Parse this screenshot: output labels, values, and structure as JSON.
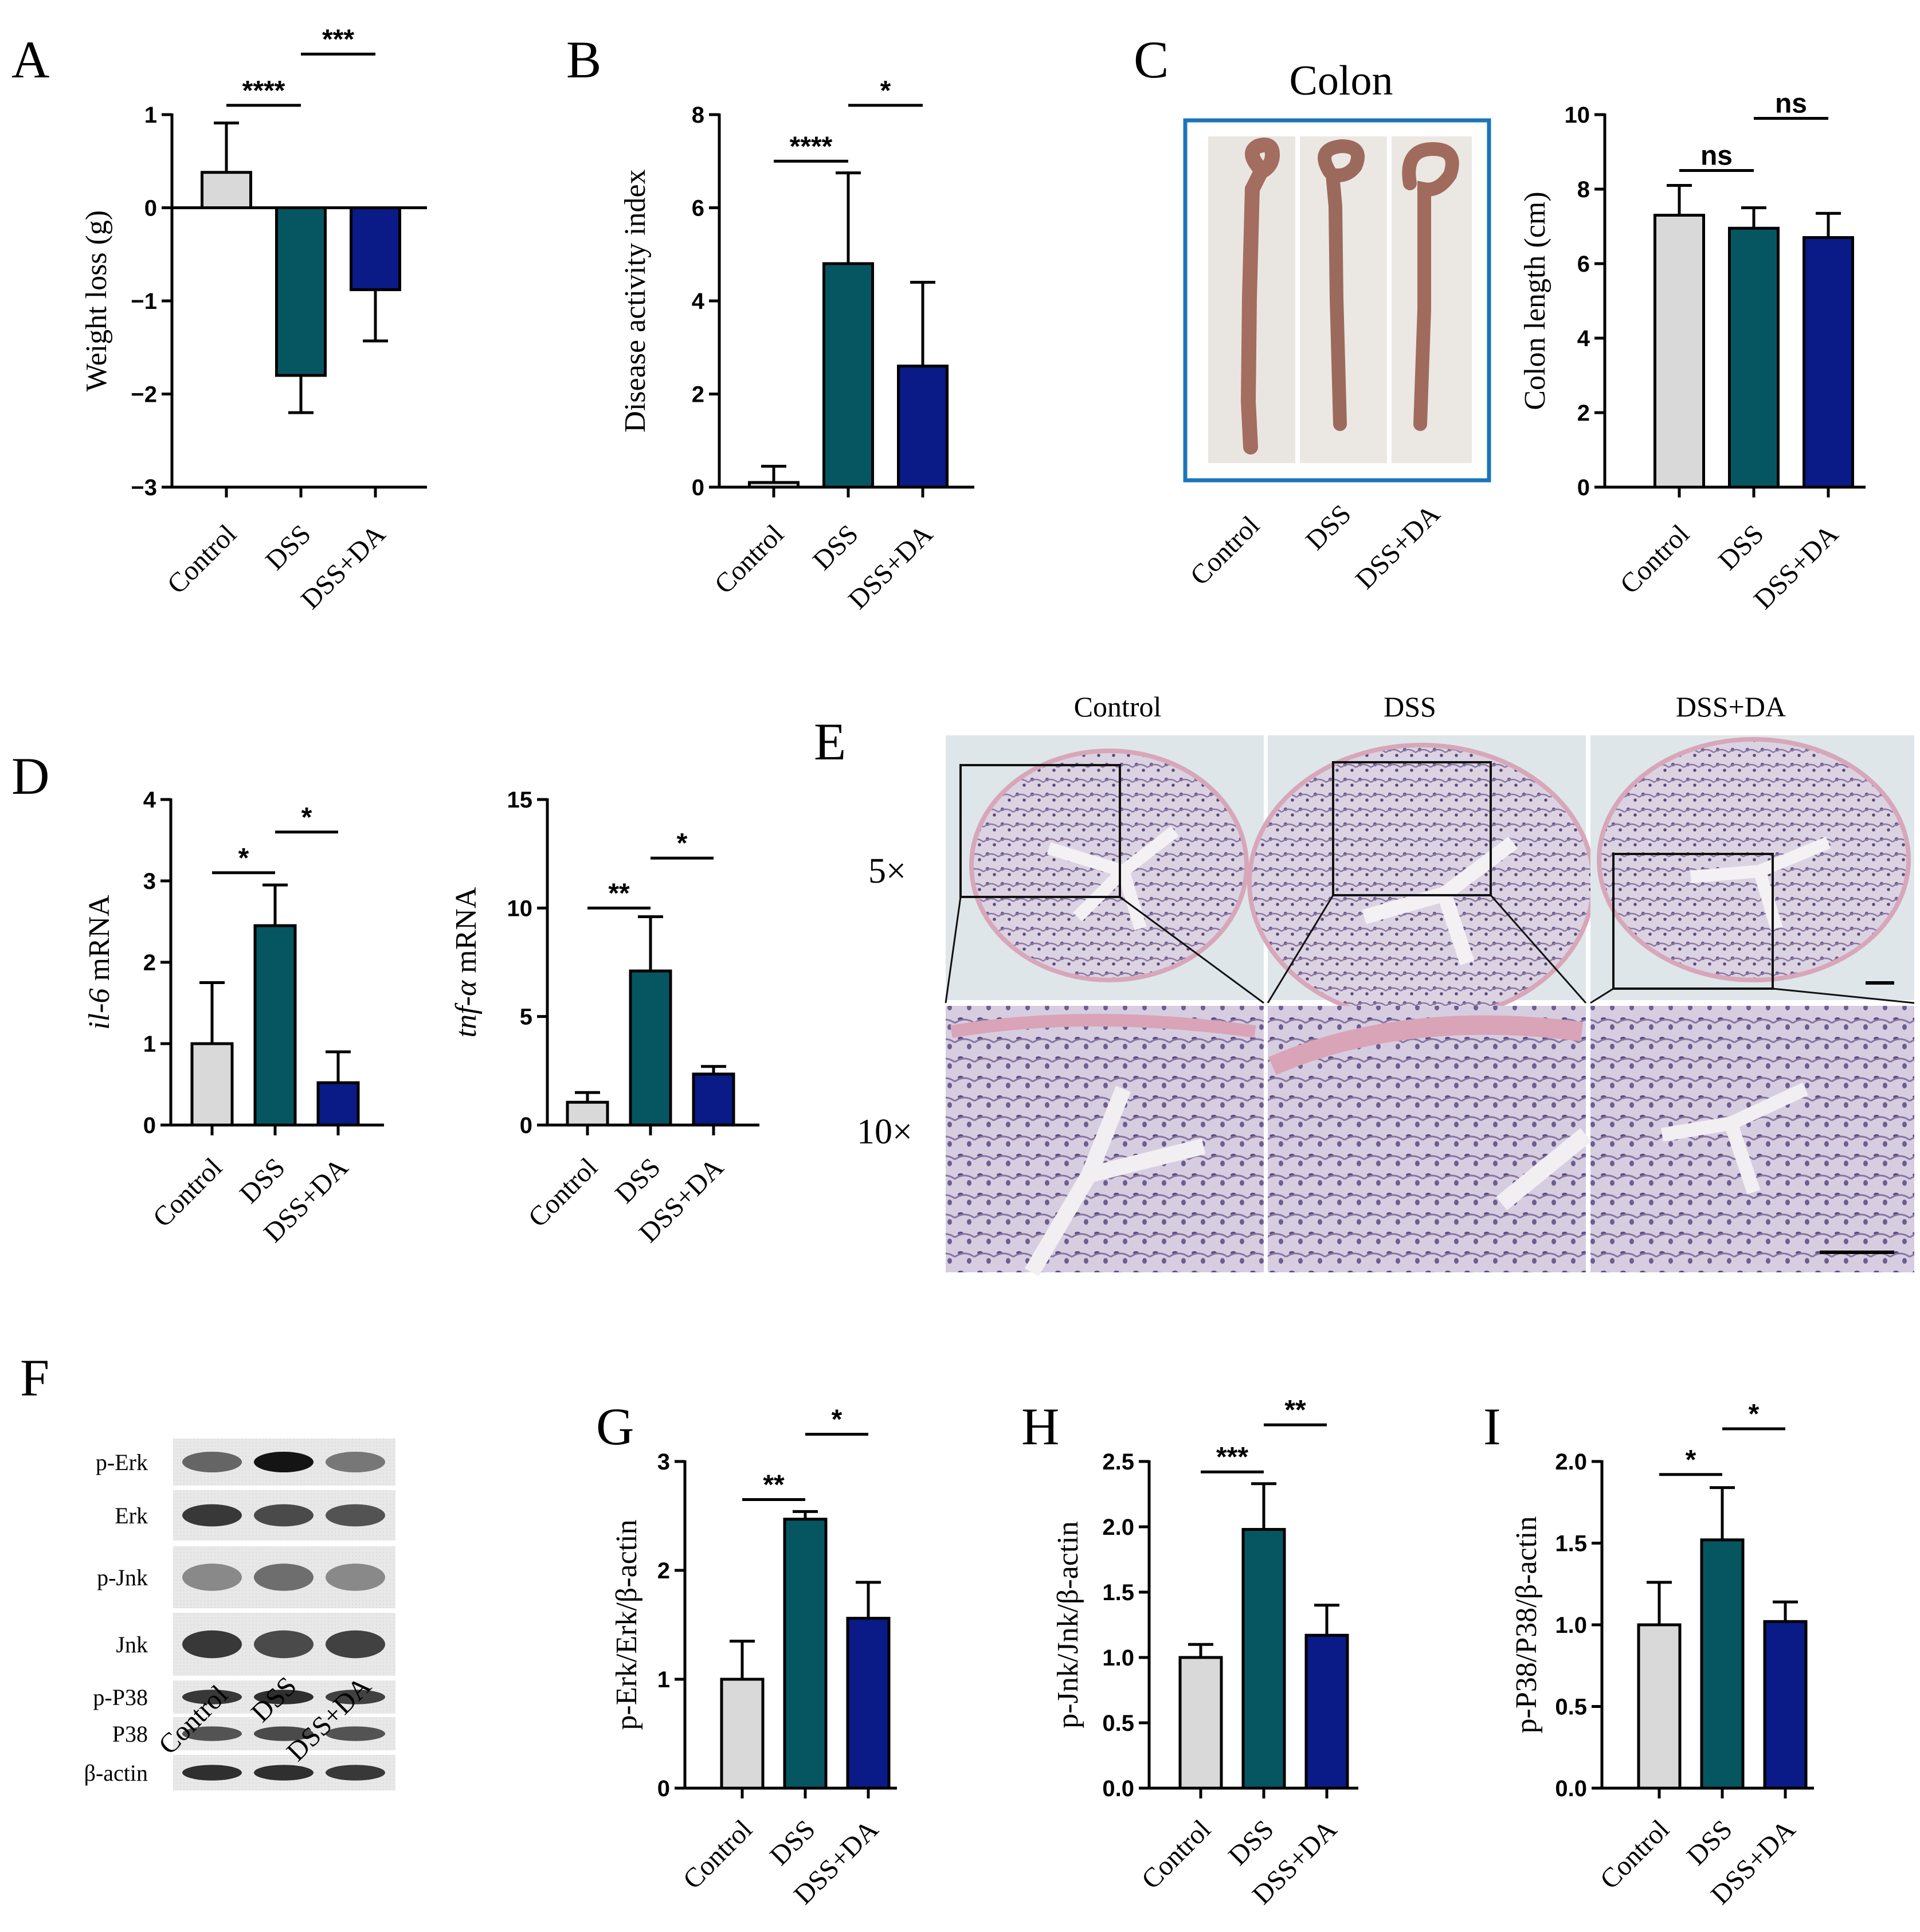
{
  "figure": {
    "panels": [
      "A",
      "B",
      "C",
      "D",
      "E",
      "F",
      "G",
      "H",
      "I"
    ],
    "groups": [
      "Control",
      "DSS",
      "DSS+DA"
    ],
    "group_colors": [
      "#d9d9d9",
      "#065662",
      "#0a1a86"
    ],
    "colon_photo_title": "Colon",
    "histology": {
      "column_labels": [
        "Control",
        "DSS",
        "DSS+DA"
      ],
      "row_labels": [
        "5×",
        "10×"
      ]
    },
    "blot_labels": [
      "p-Erk",
      "Erk",
      "p-Jnk",
      "Jnk",
      "p-P38",
      "P38",
      "β-actin"
    ]
  },
  "chart_data": [
    {
      "id": "A",
      "type": "bar",
      "categories": [
        "Control",
        "DSS",
        "DSS+DA"
      ],
      "values": [
        0.38,
        -1.8,
        -0.88
      ],
      "errors": [
        0.53,
        0.4,
        0.55
      ],
      "ylabel": "Weight loss (g)",
      "ylim": [
        -3,
        1
      ],
      "yticks": [
        1,
        0,
        -1,
        -2,
        -3
      ],
      "ytick_labels": [
        "1",
        "0",
        "−1",
        "−2",
        "−3"
      ],
      "zero_line": true,
      "significance": [
        {
          "from": 0,
          "to": 1,
          "label": "****",
          "y": 1.1
        },
        {
          "from": 1,
          "to": 2,
          "label": "***",
          "y": 1.65
        }
      ]
    },
    {
      "id": "B",
      "type": "bar",
      "categories": [
        "Control",
        "DSS",
        "DSS+DA"
      ],
      "values": [
        0.1,
        4.8,
        2.6
      ],
      "errors": [
        0.35,
        1.95,
        1.8
      ],
      "ylabel": "Disease activity index",
      "ylim": [
        0,
        8
      ],
      "yticks": [
        0,
        2,
        4,
        6,
        8
      ],
      "ytick_labels": [
        "0",
        "2",
        "4",
        "6",
        "8"
      ],
      "significance": [
        {
          "from": 0,
          "to": 1,
          "label": "****",
          "y": 7.0
        },
        {
          "from": 1,
          "to": 2,
          "label": "*",
          "y": 8.2
        }
      ]
    },
    {
      "id": "C",
      "type": "bar",
      "categories": [
        "Control",
        "DSS",
        "DSS+DA"
      ],
      "values": [
        7.3,
        6.95,
        6.7
      ],
      "errors": [
        0.8,
        0.55,
        0.65
      ],
      "ylabel": "Colon length (cm)",
      "ylim": [
        0,
        10
      ],
      "yticks": [
        0,
        2,
        4,
        6,
        8,
        10
      ],
      "ytick_labels": [
        "0",
        "2",
        "4",
        "6",
        "8",
        "10"
      ],
      "significance": [
        {
          "from": 0,
          "to": 1,
          "label": "ns",
          "y": 8.5
        },
        {
          "from": 1,
          "to": 2,
          "label": "ns",
          "y": 9.9
        }
      ]
    },
    {
      "id": "D1",
      "type": "bar",
      "categories": [
        "Control",
        "DSS",
        "DSS+DA"
      ],
      "values": [
        1.0,
        2.45,
        0.52
      ],
      "errors": [
        0.75,
        0.5,
        0.38
      ],
      "ylabel_italic": "il-6",
      "ylabel_rest": " mRNA",
      "ylim": [
        0,
        4
      ],
      "yticks": [
        0,
        1,
        2,
        3,
        4
      ],
      "ytick_labels": [
        "0",
        "1",
        "2",
        "3",
        "4"
      ],
      "significance": [
        {
          "from": 0,
          "to": 1,
          "label": "*",
          "y": 3.1
        },
        {
          "from": 1,
          "to": 2,
          "label": "*",
          "y": 3.6
        }
      ]
    },
    {
      "id": "D2",
      "type": "bar",
      "categories": [
        "Control",
        "DSS",
        "DSS+DA"
      ],
      "values": [
        1.05,
        7.1,
        2.35
      ],
      "errors": [
        0.45,
        2.5,
        0.35
      ],
      "ylabel_italic": "tnf-α",
      "ylabel_rest": " mRNA",
      "ylim": [
        0,
        15
      ],
      "yticks": [
        0,
        5,
        10,
        15
      ],
      "ytick_labels": [
        "0",
        "5",
        "10",
        "15"
      ],
      "significance": [
        {
          "from": 0,
          "to": 1,
          "label": "**",
          "y": 10.0
        },
        {
          "from": 1,
          "to": 2,
          "label": "*",
          "y": 12.3
        }
      ]
    },
    {
      "id": "G",
      "type": "bar",
      "categories": [
        "Control",
        "DSS",
        "DSS+DA"
      ],
      "values": [
        1.0,
        2.47,
        1.56
      ],
      "errors": [
        0.35,
        0.07,
        0.33
      ],
      "ylabel": "p-Erk/Erk/β-actin",
      "ylim": [
        0,
        3
      ],
      "yticks": [
        0,
        1,
        2,
        3
      ],
      "ytick_labels": [
        "0",
        "1",
        "2",
        "3"
      ],
      "significance": [
        {
          "from": 0,
          "to": 1,
          "label": "**",
          "y": 2.65
        },
        {
          "from": 1,
          "to": 2,
          "label": "*",
          "y": 3.25
        }
      ]
    },
    {
      "id": "H",
      "type": "bar",
      "categories": [
        "Control",
        "DSS",
        "DSS+DA"
      ],
      "values": [
        1.0,
        1.98,
        1.17
      ],
      "errors": [
        0.1,
        0.35,
        0.23
      ],
      "ylabel": "p-Jnk/Jnk/β-actin",
      "ylim": [
        0,
        2.5
      ],
      "yticks": [
        0,
        0.5,
        1.0,
        1.5,
        2.0,
        2.5
      ],
      "ytick_labels": [
        "0.0",
        "0.5",
        "1.0",
        "1.5",
        "2.0",
        "2.5"
      ],
      "significance": [
        {
          "from": 0,
          "to": 1,
          "label": "***",
          "y": 2.42
        },
        {
          "from": 1,
          "to": 2,
          "label": "**",
          "y": 2.78
        }
      ]
    },
    {
      "id": "I",
      "type": "bar",
      "categories": [
        "Control",
        "DSS",
        "DSS+DA"
      ],
      "values": [
        1.0,
        1.52,
        1.02
      ],
      "errors": [
        0.26,
        0.32,
        0.12
      ],
      "ylabel": "p-P38/P38/β-actin",
      "ylim": [
        0,
        2.0
      ],
      "yticks": [
        0,
        0.5,
        1.0,
        1.5,
        2.0
      ],
      "ytick_labels": [
        "0.0",
        "0.5",
        "1.0",
        "1.5",
        "2.0"
      ],
      "significance": [
        {
          "from": 0,
          "to": 1,
          "label": "*",
          "y": 1.92
        },
        {
          "from": 1,
          "to": 2,
          "label": "*",
          "y": 2.2
        }
      ]
    }
  ]
}
